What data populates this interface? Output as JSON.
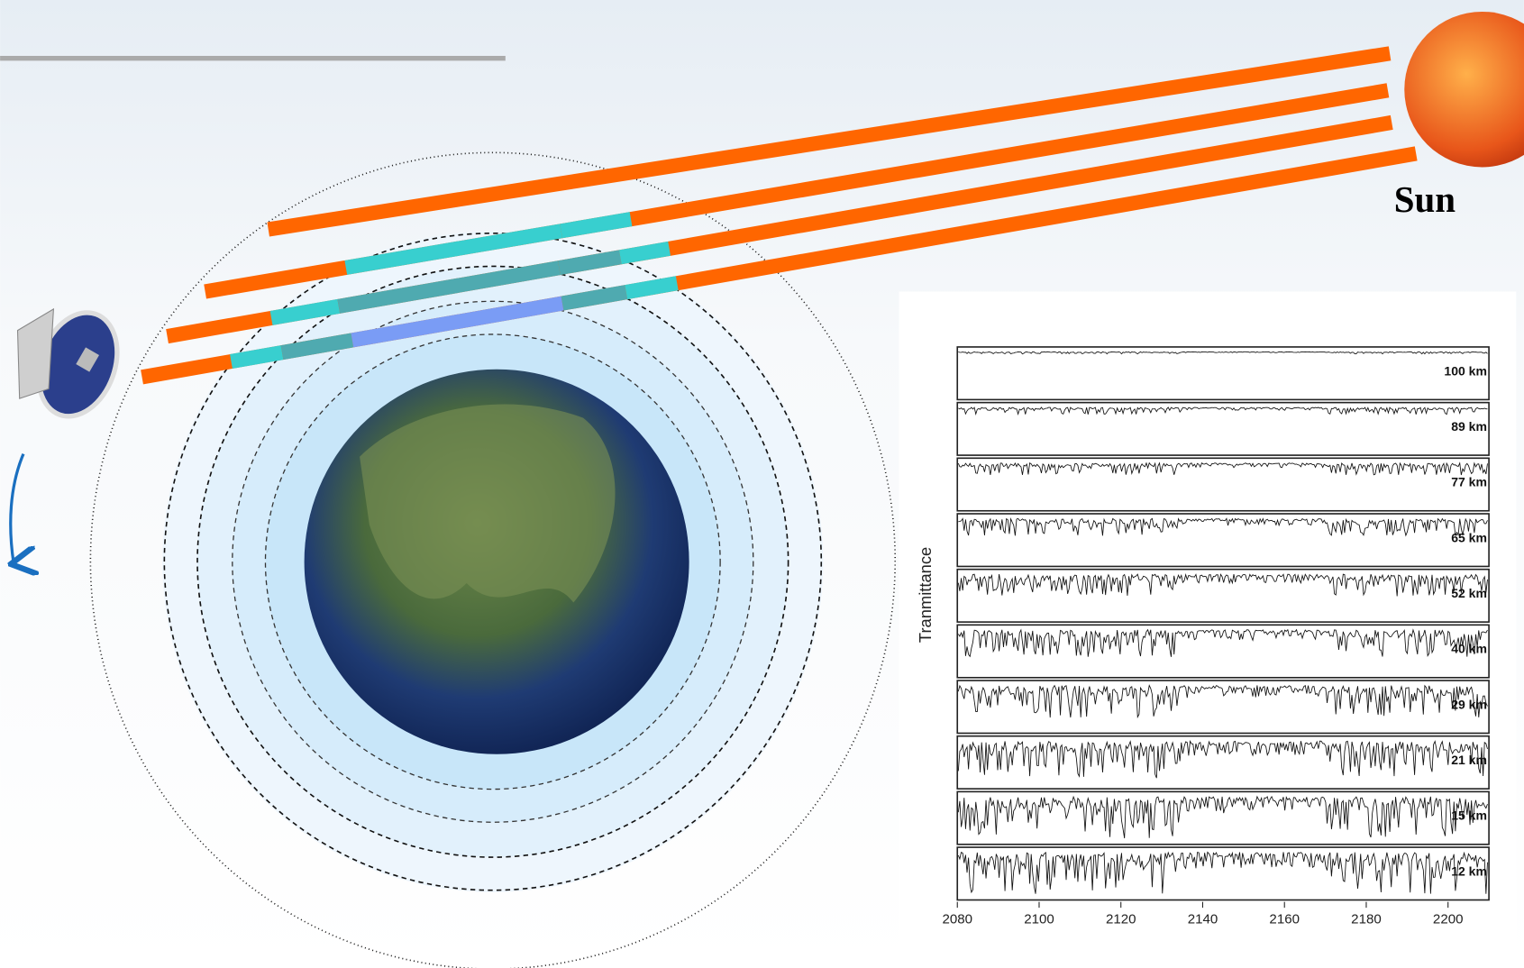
{
  "sun_label": "Sun",
  "chart_data": {
    "type": "spectra",
    "ylabel": "Tranmittance",
    "panels": [
      "100 km",
      "89 km",
      "77 km",
      "65 km",
      "52 km",
      "40 km",
      "29 km",
      "21 km",
      "15 km",
      "12 km"
    ],
    "xlim": [
      2080,
      2210
    ],
    "xticks": [
      2080,
      2100,
      2120,
      2140,
      2160,
      2180,
      2200
    ]
  }
}
